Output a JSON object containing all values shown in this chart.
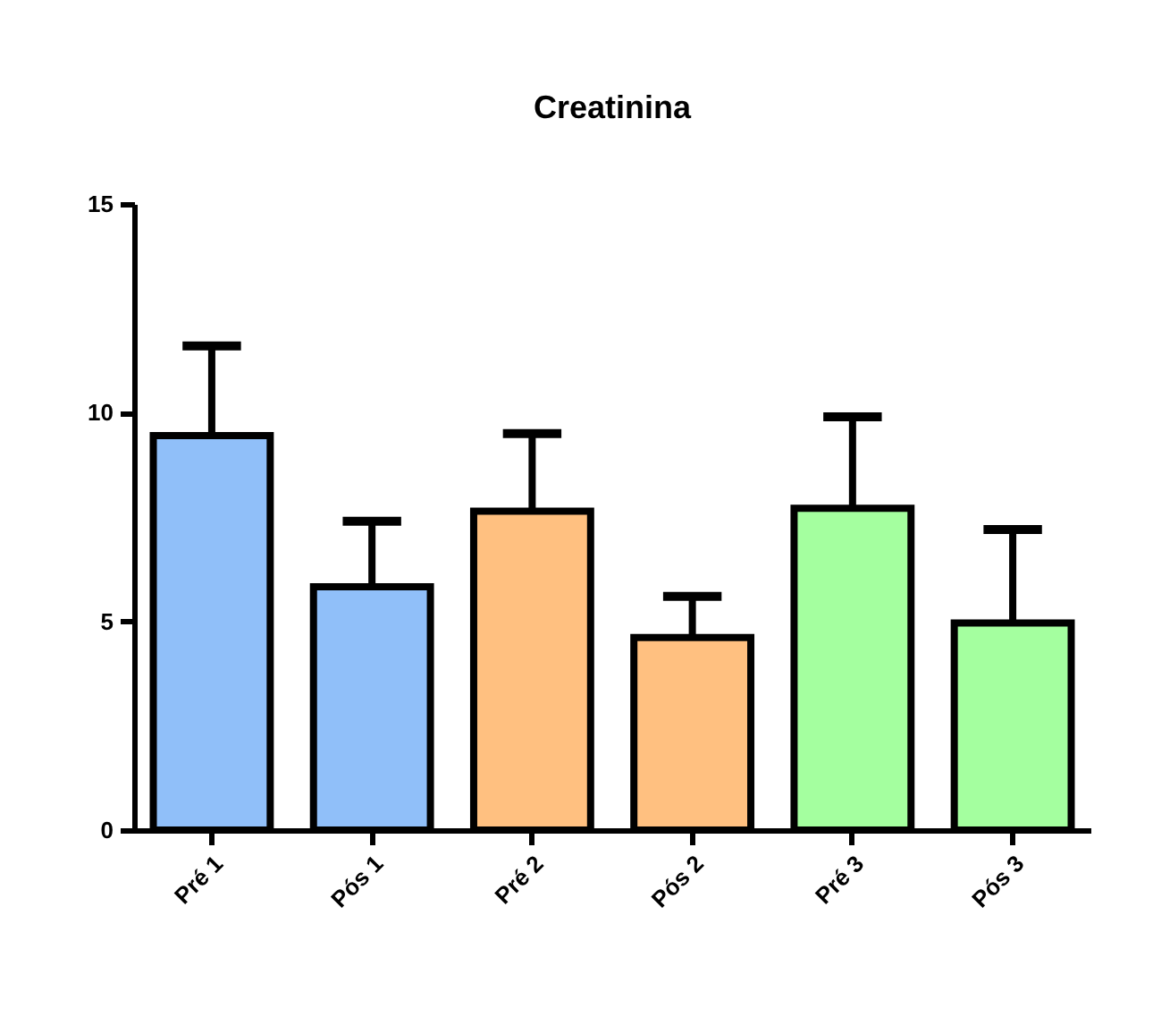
{
  "chart_data": {
    "type": "bar",
    "title": "Creatinina",
    "categories": [
      "Pré 1",
      "Pós 1",
      "Pré 2",
      "Pós 2",
      "Pré 3",
      "Pós 3"
    ],
    "values": [
      9.45,
      5.83,
      7.64,
      4.61,
      7.71,
      4.96
    ],
    "colors": [
      "#90bff9",
      "#90bff9",
      "#ffc080",
      "#ffc080",
      "#a4ff9f",
      "#a4ff9f"
    ],
    "errors": [
      [
        9.45,
        11.6
      ],
      [
        5.83,
        7.4
      ],
      [
        7.64,
        9.5
      ],
      [
        4.61,
        5.6
      ],
      [
        7.71,
        9.9
      ],
      [
        4.96,
        7.2
      ]
    ],
    "ylim": [
      0,
      15
    ],
    "yticks": [
      0,
      5,
      10,
      15
    ]
  }
}
